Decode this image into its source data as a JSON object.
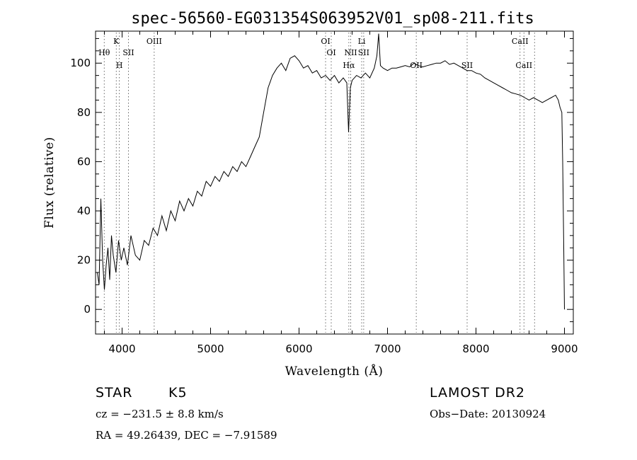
{
  "chart_data": {
    "type": "line",
    "title": "spec-56560-EG031354S063952V01_sp08-211.fits",
    "xlabel": "Wavelength (Å)",
    "ylabel": "Flux (relative)",
    "xlim": [
      3700,
      9100
    ],
    "ylim": [
      -10,
      113
    ],
    "xticks": [
      4000,
      5000,
      6000,
      7000,
      8000,
      9000
    ],
    "yticks": [
      0,
      20,
      40,
      60,
      80,
      100
    ],
    "grid": false,
    "series": [
      {
        "x": [
          3720,
          3740,
          3760,
          3780,
          3800,
          3820,
          3840,
          3860,
          3880,
          3900,
          3930,
          3960,
          3990,
          4020,
          4060,
          4100,
          4150,
          4200,
          4250,
          4300,
          4350,
          4400,
          4450,
          4500,
          4550,
          4600,
          4650,
          4700,
          4750,
          4800,
          4850,
          4900,
          4950,
          5000,
          5050,
          5100,
          5150,
          5200,
          5250,
          5300,
          5350,
          5400,
          5450,
          5500,
          5550,
          5600,
          5650,
          5700,
          5750,
          5800,
          5850,
          5900,
          5950,
          6000,
          6050,
          6100,
          6150,
          6200,
          6250,
          6300,
          6350,
          6400,
          6450,
          6500,
          6540,
          6560,
          6580,
          6600,
          6650,
          6700,
          6750,
          6800,
          6850,
          6880,
          6900,
          6920,
          6950,
          7000,
          7050,
          7100,
          7150,
          7200,
          7250,
          7300,
          7350,
          7400,
          7450,
          7500,
          7550,
          7600,
          7650,
          7700,
          7750,
          7800,
          7850,
          7900,
          7950,
          8000,
          8050,
          8100,
          8150,
          8200,
          8250,
          8300,
          8350,
          8400,
          8450,
          8500,
          8550,
          8600,
          8650,
          8700,
          8750,
          8800,
          8850,
          8900,
          8930,
          8950,
          8970,
          8980,
          8990,
          9000
        ],
        "y": [
          15,
          10,
          45,
          20,
          8,
          18,
          25,
          12,
          30,
          22,
          15,
          28,
          20,
          25,
          18,
          30,
          22,
          20,
          28,
          26,
          33,
          30,
          38,
          32,
          40,
          36,
          44,
          40,
          45,
          42,
          48,
          46,
          52,
          50,
          54,
          52,
          56,
          54,
          58,
          56,
          60,
          58,
          62,
          66,
          70,
          80,
          90,
          95,
          98,
          100,
          97,
          102,
          103,
          101,
          98,
          99,
          96,
          97,
          94,
          95,
          93,
          95,
          92,
          94,
          92,
          72,
          90,
          93,
          95,
          94,
          96,
          94,
          98,
          103,
          112,
          99,
          98,
          97,
          98,
          98,
          98.5,
          99,
          98.5,
          100,
          99,
          98.5,
          99,
          99.5,
          100,
          100,
          101,
          99.5,
          100,
          99,
          98,
          97,
          97,
          96,
          95.5,
          94,
          93,
          92,
          91,
          90,
          89,
          88,
          87.5,
          87,
          86,
          85,
          86,
          85,
          84,
          85,
          86,
          87,
          85,
          82,
          80,
          60,
          30,
          0
        ]
      }
    ],
    "line_markers": [
      {
        "label": "Hθ",
        "x": 3798,
        "row": 2
      },
      {
        "label": "K",
        "x": 3934,
        "row": 1
      },
      {
        "label": "H",
        "x": 3969,
        "row": 3
      },
      {
        "label": "SII",
        "x": 4072,
        "row": 2
      },
      {
        "label": "OIII",
        "x": 4363,
        "row": 1
      },
      {
        "label": "OI",
        "x": 6300,
        "row": 1
      },
      {
        "label": "OI",
        "x": 6364,
        "row": 2
      },
      {
        "label": "Hα",
        "x": 6563,
        "row": 3
      },
      {
        "label": "NII",
        "x": 6584,
        "row": 2
      },
      {
        "label": "Li",
        "x": 6708,
        "row": 1
      },
      {
        "label": "SII",
        "x": 6731,
        "row": 2
      },
      {
        "label": "OII",
        "x": 7325,
        "row": 3
      },
      {
        "label": "SII",
        "x": 7900,
        "row": 3
      },
      {
        "label": "CaII",
        "x": 8498,
        "row": 1
      },
      {
        "label": "CaII",
        "x": 8542,
        "row": 3
      },
      {
        "label": "",
        "x": 8662,
        "row": 0
      }
    ]
  },
  "info": {
    "object_class": "STAR",
    "subclass": "K5",
    "survey": "LAMOST DR2",
    "cz": "cz = −231.5 ± 8.8 km/s",
    "obs_date": "Obs−Date: 20130924",
    "coords": "RA =  49.26439, DEC =  −7.91589"
  }
}
